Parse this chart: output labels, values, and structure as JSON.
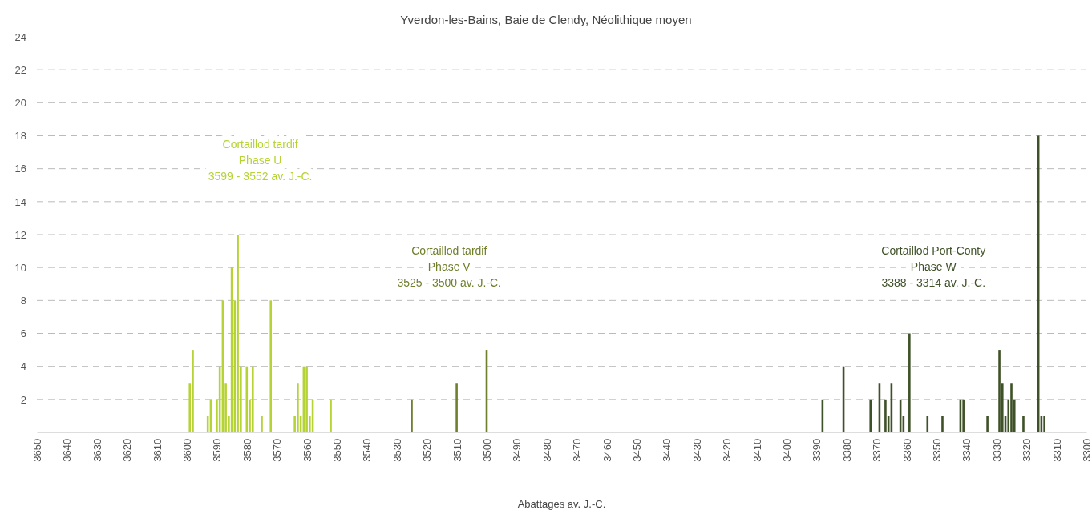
{
  "chart_data": {
    "type": "bar",
    "title": "Yverdon-les-Bains, Baie de Clendy, Néolithique moyen",
    "xlabel": "Abattages av. J.-C.",
    "xlim": [
      3650,
      3300
    ],
    "xticks": [
      3650,
      3640,
      3630,
      3620,
      3610,
      3600,
      3590,
      3580,
      3570,
      3560,
      3550,
      3540,
      3530,
      3520,
      3510,
      3500,
      3490,
      3480,
      3470,
      3460,
      3450,
      3440,
      3430,
      3420,
      3410,
      3400,
      3390,
      3380,
      3370,
      3360,
      3350,
      3340,
      3330,
      3320,
      3310,
      3300
    ],
    "ylim": [
      0,
      24
    ],
    "yticks": [
      2,
      4,
      6,
      8,
      10,
      12,
      14,
      16,
      18,
      20,
      22,
      24
    ],
    "grid": "y",
    "line_style": "dashed",
    "series": [
      {
        "color": "#b5d334",
        "x": [
          3599,
          3598,
          3593,
          3592,
          3590,
          3589,
          3588,
          3587,
          3586,
          3585,
          3584,
          3583,
          3582,
          3580,
          3579,
          3578,
          3575,
          3572,
          3564,
          3563,
          3562,
          3561,
          3560,
          3559,
          3558,
          3552
        ],
        "values": [
          3,
          5,
          1,
          2,
          2,
          4,
          8,
          3,
          1,
          10,
          8,
          12,
          4,
          4,
          2,
          4,
          1,
          8,
          1,
          3,
          1,
          4,
          4,
          1,
          2,
          2
        ]
      },
      {
        "color": "#6f7f2c",
        "x": [
          3525,
          3510,
          3500
        ],
        "values": [
          2,
          3,
          5
        ]
      },
      {
        "color": "#3f5128",
        "x": [
          3388,
          3381,
          3372,
          3369,
          3367,
          3366,
          3365,
          3362,
          3361,
          3359,
          3353,
          3348,
          3342,
          3341,
          3333,
          3329,
          3328,
          3327,
          3326,
          3325,
          3324,
          3321,
          3316,
          3315,
          3314
        ],
        "values": [
          2,
          4,
          2,
          3,
          2,
          1,
          3,
          2,
          1,
          6,
          1,
          1,
          2,
          2,
          1,
          5,
          3,
          1,
          2,
          3,
          2,
          1,
          18,
          1,
          1
        ]
      }
    ],
    "annotations": [
      "Cortaillod tardif\nPhase U\n3599 - 3552 av. J.-C.",
      "Cortaillod tardif\nPhase V\n3525 - 3500 av. J.-C.",
      "Cortaillod Port-Conty\nPhase W\n3388 - 3314 av. J.-C."
    ]
  }
}
